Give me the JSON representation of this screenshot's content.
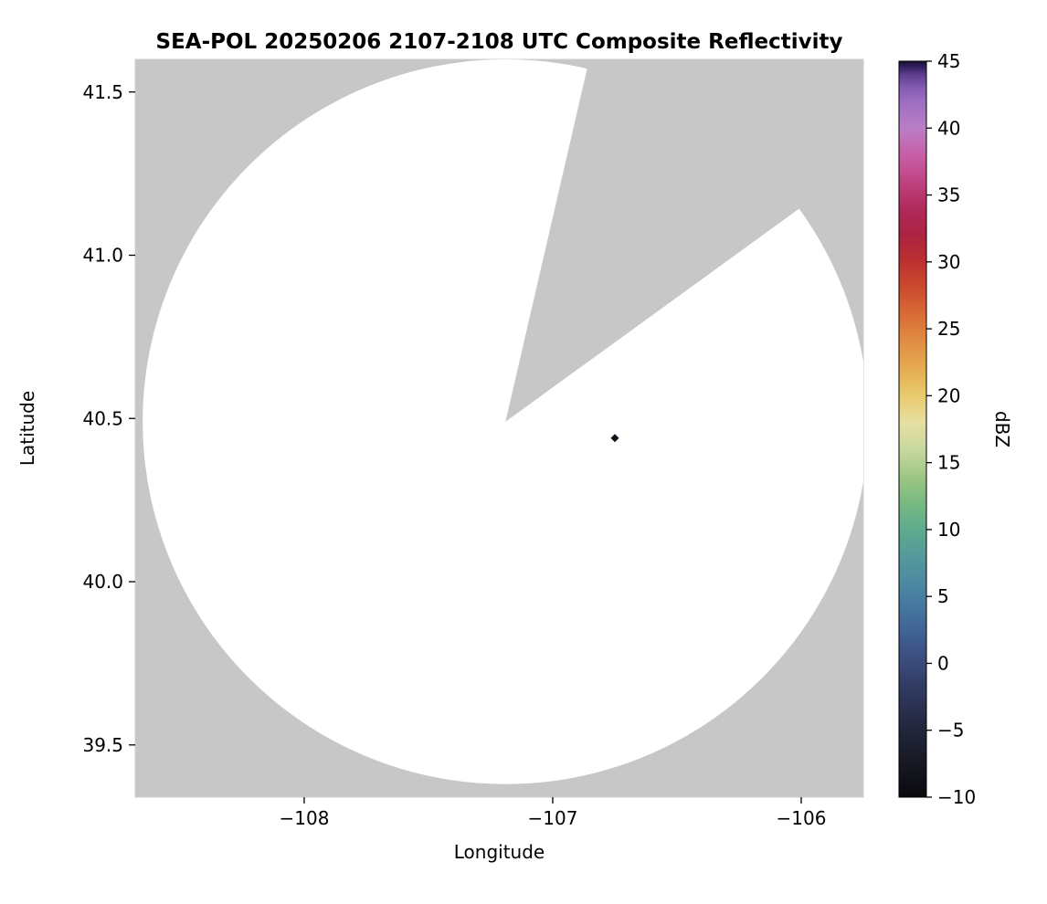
{
  "chart_data": {
    "type": "radar-composite-reflectivity-map",
    "title": "SEA-POL 20250206 2107-2108 UTC Composite Reflectivity",
    "xlabel": "Longitude",
    "ylabel": "Latitude",
    "xlim": [
      -108.68,
      -105.75
    ],
    "ylim": [
      39.34,
      41.6
    ],
    "xticks": [
      -108,
      -107,
      -106
    ],
    "xtick_labels": [
      "−108",
      "−107",
      "−106"
    ],
    "yticks": [
      39.5,
      40.0,
      40.5,
      41.0,
      41.5
    ],
    "ytick_labels": [
      "39.5",
      "40.0",
      "40.5",
      "41.0",
      "41.5"
    ],
    "grid": false,
    "legend": "none",
    "colors": {
      "no_coverage": "#c7c7c7",
      "coverage_no_echo": "#ffffff",
      "tick": "#000000",
      "frame": "#cccccc"
    },
    "radar": {
      "center_lon": -107.19,
      "center_lat": 40.49,
      "range_deg_lon": 1.46,
      "range_deg_lat": 1.11,
      "blocked_sector_azimuth_deg": [
        13,
        54
      ]
    },
    "echo_points": [
      {
        "lon": -106.75,
        "lat": 40.44,
        "dbz": 45,
        "color": "#171020"
      }
    ],
    "colorbar": {
      "label": "dBZ",
      "min": -10,
      "max": 45,
      "ticks": [
        45,
        40,
        35,
        30,
        25,
        20,
        15,
        10,
        5,
        0,
        -5,
        -10
      ],
      "tick_labels": [
        "45",
        "40",
        "35",
        "30",
        "25",
        "20",
        "15",
        "10",
        "5",
        "0",
        "−5",
        "−10"
      ],
      "stops": [
        {
          "v": -10,
          "c": "#0a0a0e"
        },
        {
          "v": -8,
          "c": "#14151e"
        },
        {
          "v": -6,
          "c": "#1d2030"
        },
        {
          "v": -4,
          "c": "#272c47"
        },
        {
          "v": -2,
          "c": "#303a60"
        },
        {
          "v": 0,
          "c": "#3a4a79"
        },
        {
          "v": 2,
          "c": "#3f5e92"
        },
        {
          "v": 4,
          "c": "#45759e"
        },
        {
          "v": 6,
          "c": "#4d89a2"
        },
        {
          "v": 8,
          "c": "#55999b"
        },
        {
          "v": 10,
          "c": "#5fab8d"
        },
        {
          "v": 12,
          "c": "#78b981"
        },
        {
          "v": 14,
          "c": "#9fc784"
        },
        {
          "v": 16,
          "c": "#c8d89f"
        },
        {
          "v": 18,
          "c": "#e6dfa2"
        },
        {
          "v": 20,
          "c": "#e8cb6d"
        },
        {
          "v": 22,
          "c": "#e6ac52"
        },
        {
          "v": 24,
          "c": "#e08e43"
        },
        {
          "v": 26,
          "c": "#d96d37"
        },
        {
          "v": 28,
          "c": "#cc4c2e"
        },
        {
          "v": 30,
          "c": "#bc3130"
        },
        {
          "v": 32,
          "c": "#ac2342"
        },
        {
          "v": 34,
          "c": "#b02a5c"
        },
        {
          "v": 36,
          "c": "#bf4381"
        },
        {
          "v": 38,
          "c": "#c75fa6"
        },
        {
          "v": 40,
          "c": "#bb7ec6"
        },
        {
          "v": 42,
          "c": "#9c6ec2"
        },
        {
          "v": 43,
          "c": "#855bb4"
        },
        {
          "v": 44,
          "c": "#5d3f8e"
        },
        {
          "v": 44.6,
          "c": "#32205c"
        },
        {
          "v": 45,
          "c": "#191030"
        }
      ]
    }
  }
}
